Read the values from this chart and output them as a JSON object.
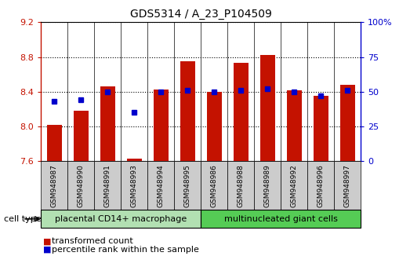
{
  "title": "GDS5314 / A_23_P104509",
  "samples": [
    "GSM948987",
    "GSM948990",
    "GSM948991",
    "GSM948993",
    "GSM948994",
    "GSM948995",
    "GSM948986",
    "GSM948988",
    "GSM948989",
    "GSM948992",
    "GSM948996",
    "GSM948997"
  ],
  "transformed_count": [
    8.02,
    8.18,
    8.46,
    7.63,
    8.43,
    8.75,
    8.4,
    8.73,
    8.82,
    8.42,
    8.35,
    8.48
  ],
  "percentile_rank": [
    43,
    44,
    50,
    35,
    50,
    51,
    50,
    51,
    52,
    50,
    47,
    51
  ],
  "group1_count": 6,
  "group2_count": 6,
  "group1_label": "placental CD14+ macrophage",
  "group2_label": "multinucleated giant cells",
  "cell_type_label": "cell type",
  "bar_color": "#c41200",
  "dot_color": "#0000cc",
  "ylim_left": [
    7.6,
    9.2
  ],
  "ylim_right": [
    0,
    100
  ],
  "yticks_left": [
    7.6,
    8.0,
    8.4,
    8.8,
    9.2
  ],
  "yticks_right": [
    0,
    25,
    50,
    75,
    100
  ],
  "ytick_right_labels": [
    "0",
    "25",
    "50",
    "75",
    "100%"
  ],
  "group1_color": "#b2e0b2",
  "group2_color": "#55cc55",
  "legend_tc": "transformed count",
  "legend_pr": "percentile rank within the sample",
  "bar_width": 0.55,
  "baseline": 7.6,
  "grid_color": "#000000",
  "border_color": "#000000"
}
